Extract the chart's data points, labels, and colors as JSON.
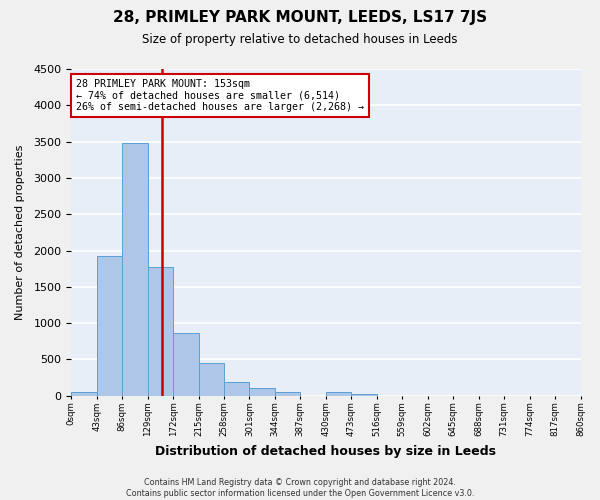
{
  "title": "28, PRIMLEY PARK MOUNT, LEEDS, LS17 7JS",
  "subtitle": "Size of property relative to detached houses in Leeds",
  "xlabel": "Distribution of detached houses by size in Leeds",
  "ylabel": "Number of detached properties",
  "bin_labels": [
    "0sqm",
    "43sqm",
    "86sqm",
    "129sqm",
    "172sqm",
    "215sqm",
    "258sqm",
    "301sqm",
    "344sqm",
    "387sqm",
    "430sqm",
    "473sqm",
    "516sqm",
    "559sqm",
    "602sqm",
    "645sqm",
    "688sqm",
    "731sqm",
    "774sqm",
    "817sqm",
    "860sqm"
  ],
  "bar_values": [
    50,
    1920,
    3480,
    1770,
    860,
    450,
    190,
    105,
    55,
    0,
    55,
    30,
    0,
    0,
    0,
    0,
    0,
    0,
    0,
    0
  ],
  "bar_color": "#aec6e8",
  "bar_edgecolor": "#5a9fd4",
  "vline_color": "#cc0000",
  "annotation_box_text": "28 PRIMLEY PARK MOUNT: 153sqm\n← 74% of detached houses are smaller (6,514)\n26% of semi-detached houses are larger (2,268) →",
  "annotation_box_color": "#cc0000",
  "ylim": [
    0,
    4500
  ],
  "yticks": [
    0,
    500,
    1000,
    1500,
    2000,
    2500,
    3000,
    3500,
    4000,
    4500
  ],
  "background_color": "#e8eef7",
  "grid_color": "#ffffff",
  "footer_line1": "Contains HM Land Registry data © Crown copyright and database right 2024.",
  "footer_line2": "Contains public sector information licensed under the Open Government Licence v3.0.",
  "vline_pos": 3.558
}
